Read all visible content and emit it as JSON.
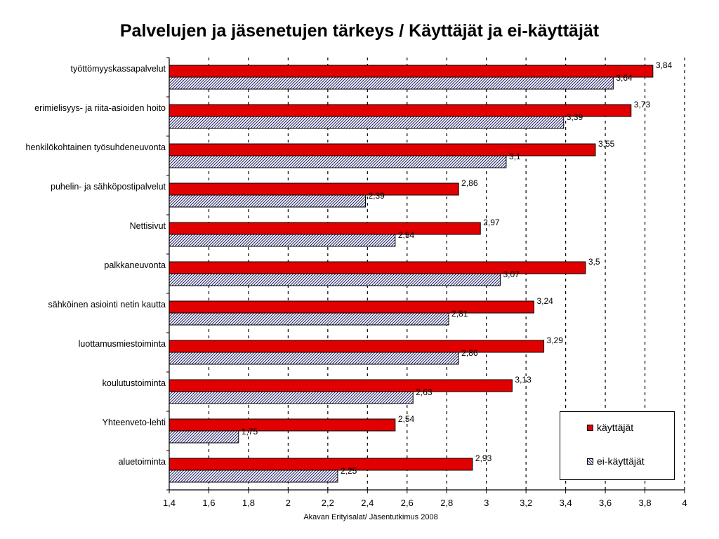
{
  "chart_data": {
    "type": "bar",
    "orientation": "horizontal",
    "title": "Palvelujen ja jäsenetujen tärkeys / Käyttäjät ja ei-käyttäjät",
    "categories": [
      "työttömyyskassapalvelut",
      "erimielisyys- ja riita-asioiden hoito",
      "henkilökohtainen työsuhdeneuvonta",
      "puhelin- ja sähköpostipalvelut",
      "Nettisivut",
      "palkkaneuvonta",
      "sähköinen asiointi netin kautta",
      "luottamusmiestoiminta",
      "koulutustoiminta",
      "Yhteenveto-lehti",
      "aluetoiminta"
    ],
    "series": [
      {
        "name": "käyttäjät",
        "values": [
          3.84,
          3.73,
          3.55,
          2.86,
          2.97,
          3.5,
          3.24,
          3.29,
          3.13,
          2.54,
          2.93
        ],
        "labels": [
          "3,84",
          "3,73",
          "3,55",
          "2,86",
          "2,97",
          "3,5",
          "3,24",
          "3,29",
          "3,13",
          "2,54",
          "2,93"
        ]
      },
      {
        "name": "ei-käyttäjät",
        "values": [
          3.64,
          3.39,
          3.1,
          2.39,
          2.54,
          3.07,
          2.81,
          2.86,
          2.63,
          1.75,
          2.25
        ],
        "labels": [
          "3,64",
          "3,39",
          "3,1",
          "2,39",
          "2,54",
          "3,07",
          "2,81",
          "2,86",
          "2,63",
          "1,75",
          "2,25"
        ]
      }
    ],
    "xlim": [
      1.4,
      4
    ],
    "ticks": [
      1.4,
      1.6,
      1.8,
      2,
      2.2,
      2.4,
      2.6,
      2.8,
      3,
      3.2,
      3.4,
      3.6,
      3.8,
      4
    ],
    "tick_labels": [
      "1,4",
      "1,6",
      "1,8",
      "2",
      "2,2",
      "2,4",
      "2,6",
      "2,8",
      "3",
      "3,2",
      "3,4",
      "3,6",
      "3,8",
      "4"
    ],
    "grid": "vertical dashed",
    "legend_position": "bottom-right",
    "colors": {
      "käyttäjät": "#e00000",
      "ei-käyttäjät": "hatched #1a1a66 on white"
    },
    "source": "Akavan Erityisalat/ Jäsentutkimus 2008"
  }
}
